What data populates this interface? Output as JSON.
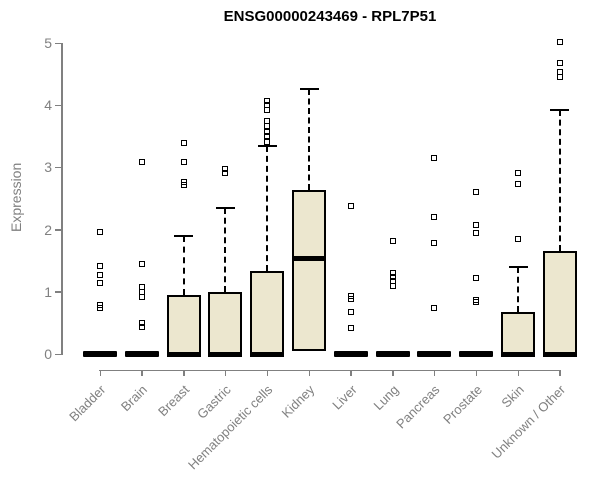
{
  "chart_data": {
    "type": "boxplot",
    "title": "ENSG00000243469 - RPL7P51",
    "ylabel": "Expression",
    "xlabel": "",
    "ylim": [
      0,
      5
    ],
    "yticks": [
      0,
      1,
      2,
      3,
      4,
      5
    ],
    "grid": false,
    "legend": "none",
    "colors": {
      "box_fill": "#ece7cf",
      "box_line": "#000000",
      "axis": "#808080",
      "tick_label": "#808080",
      "title": "#000000"
    },
    "categories": [
      "Bladder",
      "Brain",
      "Breast",
      "Gastric",
      "Hematopoietic cells",
      "Kidney",
      "Liver",
      "Lung",
      "Pancreas",
      "Prostate",
      "Skin",
      "Unknown / Other"
    ],
    "series": [
      {
        "category": "Bladder",
        "q1": 0,
        "median": 0,
        "q3": 0,
        "whisker_low": 0,
        "whisker_high": 0,
        "outliers": [
          1.96,
          1.41,
          1.27,
          1.14,
          0.79,
          0.74
        ]
      },
      {
        "category": "Brain",
        "q1": 0,
        "median": 0,
        "q3": 0,
        "whisker_low": 0,
        "whisker_high": 0,
        "outliers": [
          3.08,
          1.45,
          1.07,
          0.99,
          0.92,
          0.5,
          0.43
        ]
      },
      {
        "category": "Breast",
        "q1": 0,
        "median": 0,
        "q3": 0.95,
        "whisker_low": 0,
        "whisker_high": 1.9,
        "outliers": [
          3.4,
          3.09,
          2.77,
          2.71
        ]
      },
      {
        "category": "Gastric",
        "q1": 0,
        "median": 0,
        "q3": 0.99,
        "whisker_low": 0,
        "whisker_high": 2.34,
        "outliers": [
          2.97,
          2.91
        ]
      },
      {
        "category": "Hematopoietic cells",
        "q1": 0,
        "median": 0,
        "q3": 1.33,
        "whisker_low": 0,
        "whisker_high": 3.34,
        "outliers": [
          4.06,
          4.0,
          3.93,
          3.75,
          3.67,
          3.57,
          3.5,
          3.41
        ]
      },
      {
        "category": "Kidney",
        "q1": 0.05,
        "median": 1.54,
        "q3": 2.64,
        "whisker_low": 0.05,
        "whisker_high": 4.26,
        "outliers": []
      },
      {
        "category": "Liver",
        "q1": 0,
        "median": 0,
        "q3": 0,
        "whisker_low": 0,
        "whisker_high": 0,
        "outliers": [
          2.38,
          0.93,
          0.88,
          0.68,
          0.42
        ]
      },
      {
        "category": "Lung",
        "q1": 0,
        "median": 0,
        "q3": 0,
        "whisker_low": 0,
        "whisker_high": 0,
        "outliers": [
          1.82,
          1.31,
          1.24,
          1.17,
          1.1
        ]
      },
      {
        "category": "Pancreas",
        "q1": 0,
        "median": 0,
        "q3": 0,
        "whisker_low": 0,
        "whisker_high": 0,
        "outliers": [
          3.15,
          2.21,
          1.78,
          0.74
        ]
      },
      {
        "category": "Prostate",
        "q1": 0,
        "median": 0,
        "q3": 0,
        "whisker_low": 0,
        "whisker_high": 0,
        "outliers": [
          2.61,
          2.08,
          1.95,
          1.22,
          0.87,
          0.83
        ]
      },
      {
        "category": "Skin",
        "q1": 0,
        "median": 0,
        "q3": 0.67,
        "whisker_low": 0,
        "whisker_high": 1.4,
        "outliers": [
          2.91,
          2.74,
          1.85
        ]
      },
      {
        "category": "Unknown / Other",
        "q1": 0,
        "median": 0,
        "q3": 1.66,
        "whisker_low": 0,
        "whisker_high": 3.93,
        "outliers": [
          5.01,
          4.68,
          4.54,
          4.46
        ]
      }
    ]
  }
}
